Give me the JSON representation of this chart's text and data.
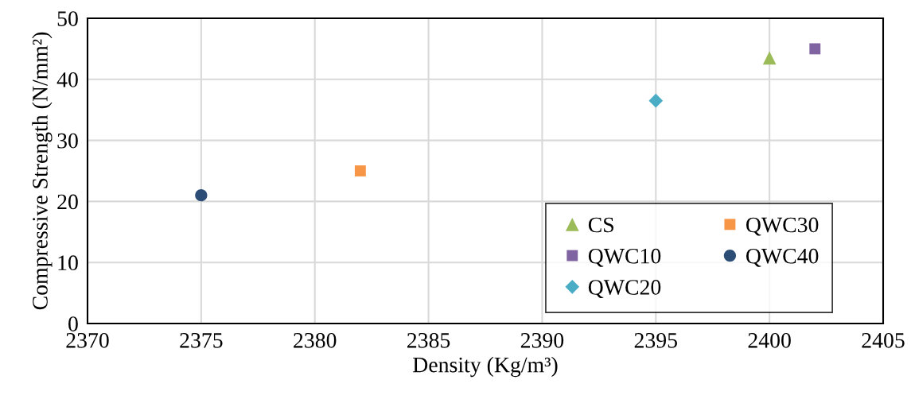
{
  "chart_data": {
    "type": "scatter",
    "xlabel": "Density (Kg/m³)",
    "ylabel": "Compressive Strength (N/mm²)",
    "xlim": [
      2370,
      2405
    ],
    "xticks": [
      2370,
      2375,
      2380,
      2385,
      2390,
      2395,
      2400,
      2405
    ],
    "ylim": [
      0,
      50
    ],
    "yticks": [
      0,
      10,
      20,
      30,
      40,
      50
    ],
    "grid": true,
    "legend": "bottom right",
    "series": [
      {
        "name": "CS",
        "color": "#9bbb59",
        "marker": "triangle",
        "x": [
          2400
        ],
        "values": [
          43.5
        ]
      },
      {
        "name": "QWC10",
        "color": "#8064a2",
        "marker": "square",
        "x": [
          2402
        ],
        "values": [
          45
        ]
      },
      {
        "name": "QWC20",
        "color": "#4bacc6",
        "marker": "diamond",
        "x": [
          2395
        ],
        "values": [
          36.5
        ]
      },
      {
        "name": "QWC30",
        "color": "#f79646",
        "marker": "square",
        "x": [
          2382
        ],
        "values": [
          25
        ]
      },
      {
        "name": "QWC40",
        "color": "#2c4d75",
        "marker": "circle",
        "x": [
          2375
        ],
        "values": [
          21
        ]
      }
    ]
  }
}
